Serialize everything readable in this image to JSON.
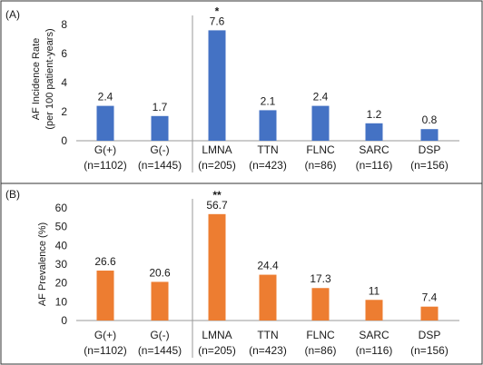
{
  "colors": {
    "panel_a_bar": "#4472c4",
    "panel_b_bar": "#ed7d31",
    "axis": "#999999",
    "text": "#1a1a1a"
  },
  "chart_data": [
    {
      "type": "bar",
      "panel_label": "(A)",
      "ylabel_lines": [
        "AF Incidence Rate",
        "(per 100  patient-years)"
      ],
      "ylim": [
        0,
        8
      ],
      "yticks": [
        0,
        2,
        4,
        6,
        8
      ],
      "categories": [
        [
          "G(+)",
          "(n=1102)"
        ],
        [
          "G(-)",
          "(n=1445)"
        ],
        [
          "LMNA",
          "(n=205)"
        ],
        [
          "TTN",
          "(n=423)"
        ],
        [
          "FLNC",
          "(n=86)"
        ],
        [
          "SARC",
          "(n=116)"
        ],
        [
          "DSP",
          "(n=156)"
        ]
      ],
      "values": [
        2.4,
        1.7,
        7.6,
        2.1,
        2.4,
        1.2,
        0.8
      ],
      "data_labels": [
        "2.4",
        "1.7",
        "7.6",
        "2.1",
        "2.4",
        "1.2",
        "0.8"
      ],
      "annotations": [
        "",
        "",
        "*",
        "",
        "",
        "",
        ""
      ],
      "grid": false,
      "legend": "none"
    },
    {
      "type": "bar",
      "panel_label": "(B)",
      "ylabel_lines": [
        "AF Prevalence (%)"
      ],
      "ylim": [
        0,
        60
      ],
      "yticks": [
        0,
        10,
        20,
        30,
        40,
        50,
        60
      ],
      "categories": [
        [
          "G(+)",
          "(n=1102)"
        ],
        [
          "G(-)",
          "(n=1445)"
        ],
        [
          "LMNA",
          "(n=205)"
        ],
        [
          "TTN",
          "(n=423)"
        ],
        [
          "FLNC",
          "(n=86)"
        ],
        [
          "SARC",
          "(n=116)"
        ],
        [
          "DSP",
          "(n=156)"
        ]
      ],
      "values": [
        26.6,
        20.6,
        56.7,
        24.4,
        17.3,
        11,
        7.4
      ],
      "data_labels": [
        "26.6",
        "20.6",
        "56.7",
        "24.4",
        "17.3",
        "11",
        "7.4"
      ],
      "annotations": [
        "",
        "",
        "**",
        "",
        "",
        "",
        ""
      ],
      "grid": false,
      "legend": "none"
    }
  ]
}
